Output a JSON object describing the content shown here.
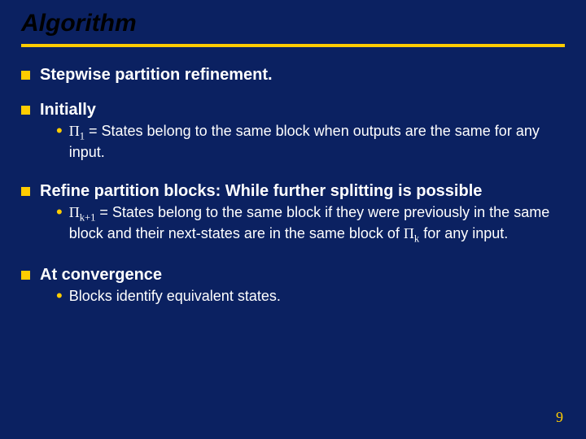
{
  "slide": {
    "title": "Algorithm",
    "title_color": "#000000",
    "title_fontsize": 30,
    "title_italic": true,
    "divider_color": "#ffcc00",
    "background_color": "#0b2161",
    "bullet_marker_color": "#ffcc00",
    "sub_marker_color": "#ffcc00",
    "text_color": "#ffffff",
    "bullets": [
      {
        "head": "Stepwise partition refinement.",
        "subs": []
      },
      {
        "head": "Initially",
        "subs": [
          {
            "html": "<span class='pi'>Π<sub>1</sub></span> = States belong to the same block when outputs are the same for any input."
          }
        ]
      },
      {
        "head": "Refine partition blocks: While further splitting is possible",
        "subs": [
          {
            "html": "<span class='pi'>Π<sub>k+1</sub></span> = States belong to the same block if they were previously in the same block and their next-states are in the same block of <span class='pi'>Π<sub>k</sub></span> for any input."
          }
        ]
      },
      {
        "head": "At convergence",
        "subs": [
          {
            "html": "Blocks identify equivalent states."
          }
        ]
      }
    ],
    "page_number": "9",
    "page_number_color": "#ffcc00"
  }
}
